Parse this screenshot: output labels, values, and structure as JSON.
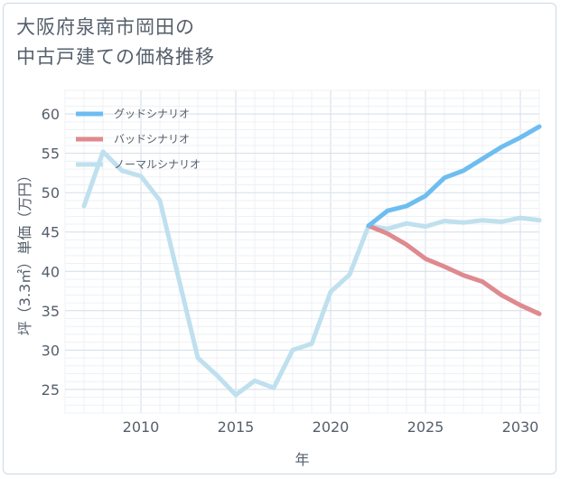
{
  "title_lines": [
    "大阪府泉南市岡田の",
    "中古戸建ての価格推移"
  ],
  "chart_data": {
    "type": "line",
    "xlabel": "年",
    "ylabel": "坪（3.3㎡）単価（万円）",
    "xlim": [
      2006,
      2031
    ],
    "ylim": [
      22,
      63
    ],
    "xticks": [
      2010,
      2015,
      2020,
      2025,
      2030
    ],
    "yticks": [
      25,
      30,
      35,
      40,
      45,
      50,
      55,
      60
    ],
    "grid": true,
    "legend_position": "top-left",
    "series": [
      {
        "name": "グッドシナリオ",
        "color": "#6dbdf0",
        "x": [
          2022,
          2023,
          2024,
          2025,
          2026,
          2027,
          2028,
          2029,
          2030,
          2031
        ],
        "y": [
          45.8,
          47.7,
          48.3,
          49.6,
          51.9,
          52.8,
          54.3,
          55.8,
          57.0,
          58.4
        ]
      },
      {
        "name": "バッドシナリオ",
        "color": "#de8a8f",
        "x": [
          2022,
          2023,
          2024,
          2025,
          2026,
          2027,
          2028,
          2029,
          2030,
          2031
        ],
        "y": [
          45.8,
          44.8,
          43.4,
          41.6,
          40.6,
          39.5,
          38.7,
          37.0,
          35.7,
          34.6
        ]
      },
      {
        "name": "ノーマルシナリオ",
        "color": "#bfe0ee",
        "x": [
          2007,
          2008,
          2009,
          2010,
          2011,
          2012,
          2013,
          2014,
          2015,
          2016,
          2017,
          2018,
          2019,
          2020,
          2021,
          2022,
          2023,
          2024,
          2025,
          2026,
          2027,
          2028,
          2029,
          2030,
          2031
        ],
        "y": [
          48.3,
          55.2,
          52.8,
          52.1,
          49.0,
          39.0,
          29.0,
          26.8,
          24.3,
          26.1,
          25.2,
          30.0,
          30.8,
          37.4,
          39.6,
          45.8,
          45.4,
          46.1,
          45.7,
          46.4,
          46.2,
          46.5,
          46.3,
          46.8,
          46.5
        ]
      }
    ]
  }
}
